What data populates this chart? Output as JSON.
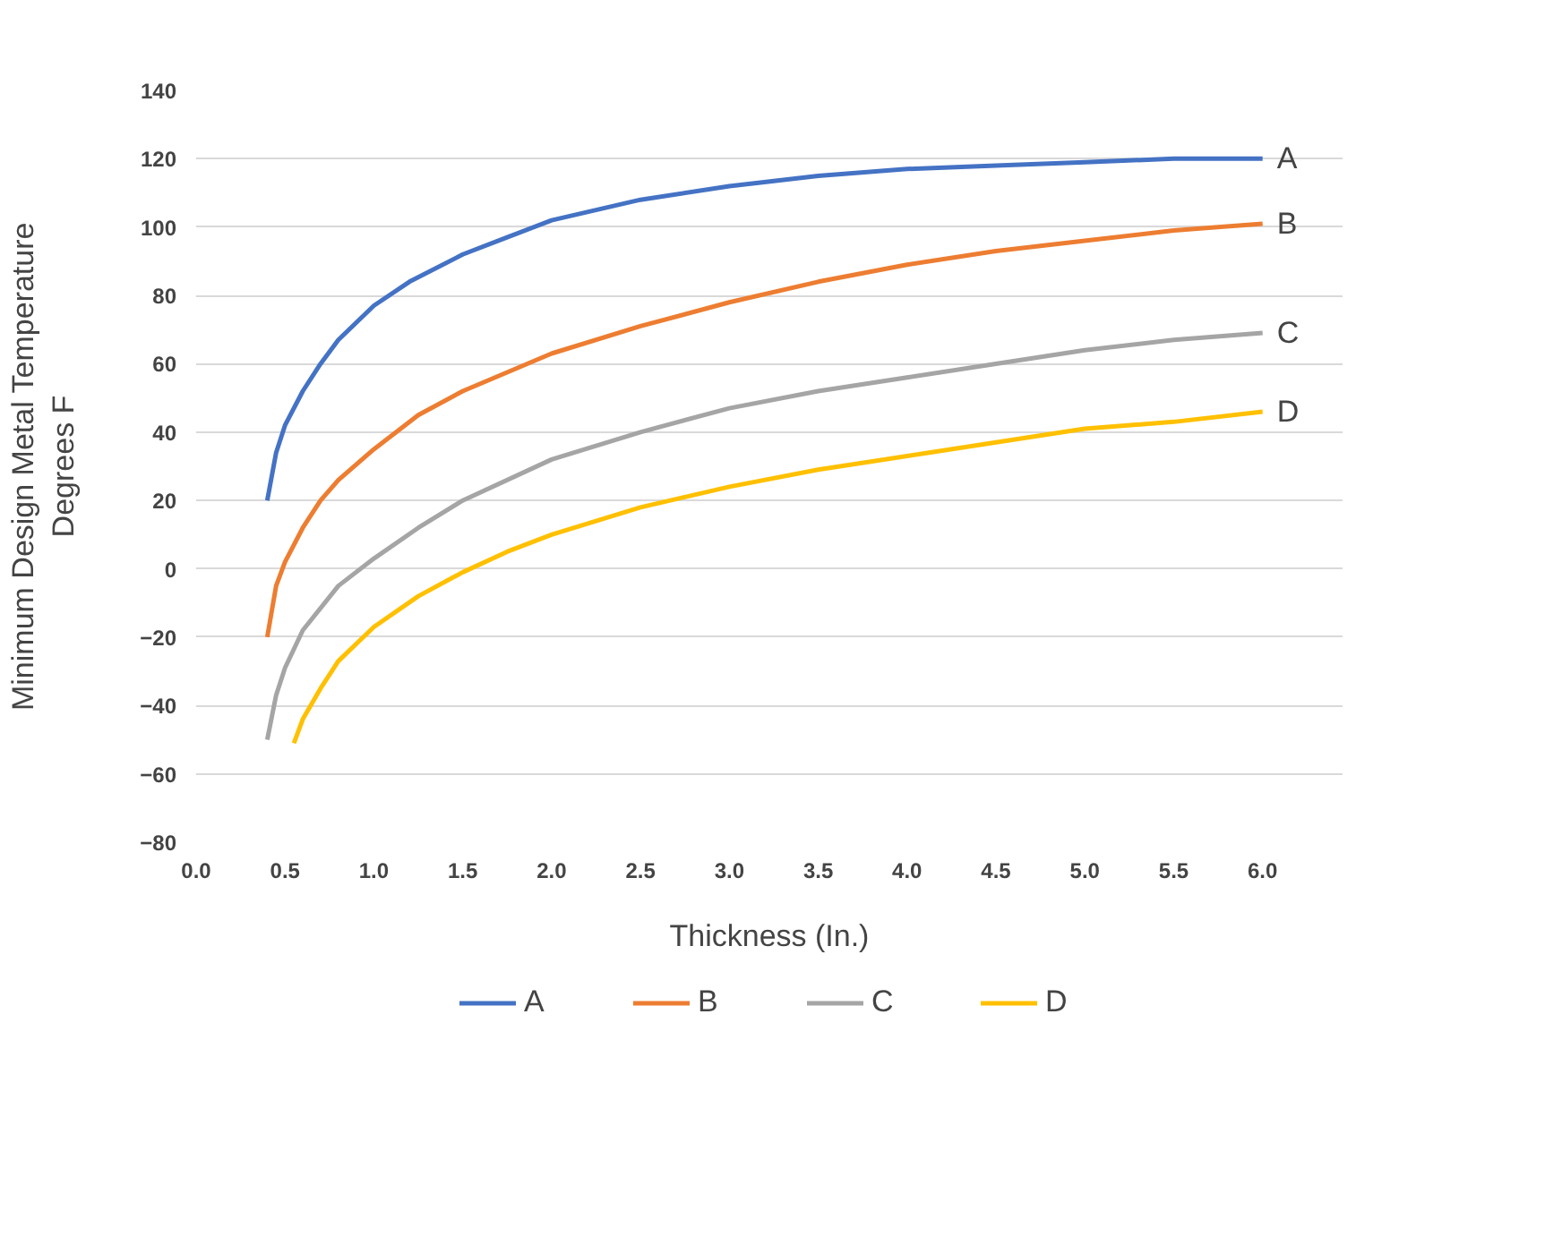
{
  "chart_data": {
    "type": "line",
    "xlabel": "Thickness (In.)",
    "ylabel": "Minimum Design Metal Temperature\nDegrees F",
    "xlim": [
      0,
      6.45
    ],
    "ylim": [
      -80,
      140
    ],
    "xticks": [
      {
        "value": 0,
        "label": "0.0"
      },
      {
        "value": 0.5,
        "label": "0.5"
      },
      {
        "value": 1,
        "label": "1.0"
      },
      {
        "value": 1.5,
        "label": "1.5"
      },
      {
        "value": 2,
        "label": "2.0"
      },
      {
        "value": 2.5,
        "label": "2.5"
      },
      {
        "value": 3,
        "label": "3.0"
      },
      {
        "value": 3.5,
        "label": "3.5"
      },
      {
        "value": 4,
        "label": "4.0"
      },
      {
        "value": 4.5,
        "label": "4.5"
      },
      {
        "value": 5,
        "label": "5.0"
      },
      {
        "value": 5.5,
        "label": "5.5"
      },
      {
        "value": 6,
        "label": "6.0"
      }
    ],
    "yticks": [
      -80,
      -60,
      -40,
      -20,
      0,
      20,
      40,
      60,
      80,
      100,
      120,
      140
    ],
    "grid": "y",
    "legend": "bottom",
    "marker": "none",
    "line_style": "solid",
    "series": [
      {
        "name": "A",
        "color": "#4472c4",
        "x": [
          0.4,
          0.45,
          0.5,
          0.6,
          0.7,
          0.8,
          1.0,
          1.2,
          1.5,
          1.75,
          2.0,
          2.5,
          3.0,
          3.5,
          4.0,
          4.5,
          5.0,
          5.5,
          6.0
        ],
        "values": [
          20,
          34,
          42,
          52,
          60,
          67,
          77,
          84,
          92,
          97,
          102,
          108,
          112,
          115,
          117,
          118,
          119,
          120,
          120
        ]
      },
      {
        "name": "B",
        "color": "#ed7d31",
        "x": [
          0.4,
          0.45,
          0.5,
          0.6,
          0.7,
          0.8,
          1.0,
          1.25,
          1.5,
          2.0,
          2.5,
          3.0,
          3.5,
          4.0,
          4.5,
          5.0,
          5.5,
          6.0
        ],
        "values": [
          -20,
          -5,
          2,
          12,
          20,
          26,
          35,
          45,
          52,
          63,
          71,
          78,
          84,
          89,
          93,
          96,
          99,
          101
        ]
      },
      {
        "name": "C",
        "color": "#a5a5a5",
        "x": [
          0.4,
          0.45,
          0.5,
          0.6,
          0.8,
          1.0,
          1.25,
          1.5,
          2.0,
          2.5,
          3.0,
          3.5,
          4.0,
          4.5,
          5.0,
          5.5,
          6.0
        ],
        "values": [
          -50,
          -37,
          -29,
          -18,
          -5,
          3,
          12,
          20,
          32,
          40,
          47,
          52,
          56,
          60,
          64,
          67,
          69
        ]
      },
      {
        "name": "D",
        "color": "#ffc000",
        "x": [
          0.55,
          0.6,
          0.7,
          0.8,
          1.0,
          1.25,
          1.5,
          1.75,
          2.0,
          2.5,
          3.0,
          3.5,
          4.0,
          4.5,
          5.0,
          5.5,
          6.0
        ],
        "values": [
          -51,
          -44,
          -35,
          -27,
          -17,
          -8,
          -1,
          5,
          10,
          18,
          24,
          29,
          33,
          37,
          41,
          43,
          46
        ]
      }
    ]
  }
}
